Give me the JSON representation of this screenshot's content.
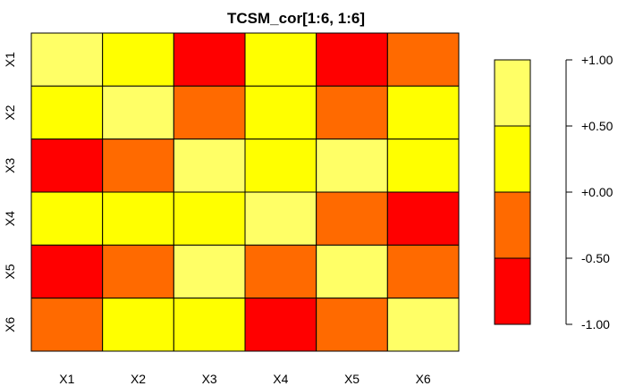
{
  "chart_data": {
    "type": "heatmap",
    "title": "TCSM_cor[1:6, 1:6]",
    "xlabel": "",
    "ylabel": "",
    "x_categories": [
      "X1",
      "X2",
      "X3",
      "X4",
      "X5",
      "X6"
    ],
    "y_categories": [
      "X1",
      "X2",
      "X3",
      "X4",
      "X5",
      "X6"
    ],
    "values": [
      [
        1.0,
        0.25,
        -1.0,
        0.25,
        -1.0,
        -0.25
      ],
      [
        0.25,
        1.0,
        -0.25,
        0.25,
        -0.25,
        0.25
      ],
      [
        -1.0,
        -0.25,
        1.0,
        0.25,
        1.0,
        0.25
      ],
      [
        0.25,
        0.25,
        0.25,
        1.0,
        -0.25,
        -1.0
      ],
      [
        -1.0,
        -0.25,
        1.0,
        -0.25,
        1.0,
        -0.25
      ],
      [
        -0.25,
        0.25,
        0.25,
        -1.0,
        -0.25,
        1.0
      ]
    ],
    "color_bins": [
      {
        "from": -1.0,
        "to": -0.5,
        "color": "#FF0000"
      },
      {
        "from": -0.5,
        "to": 0.0,
        "color": "#FF6A00"
      },
      {
        "from": 0.0,
        "to": 0.5,
        "color": "#FFFF00"
      },
      {
        "from": 0.5,
        "to": 1.0,
        "color": "#FFFF66"
      }
    ],
    "legend": {
      "position": "right",
      "ticks": [
        "+1.00",
        "+0.50",
        "+0.00",
        "-0.50",
        "-1.00"
      ],
      "tick_values": [
        1.0,
        0.5,
        0.0,
        -0.5,
        -1.0
      ]
    },
    "zlim": [
      -1,
      1
    ],
    "grid": false
  }
}
